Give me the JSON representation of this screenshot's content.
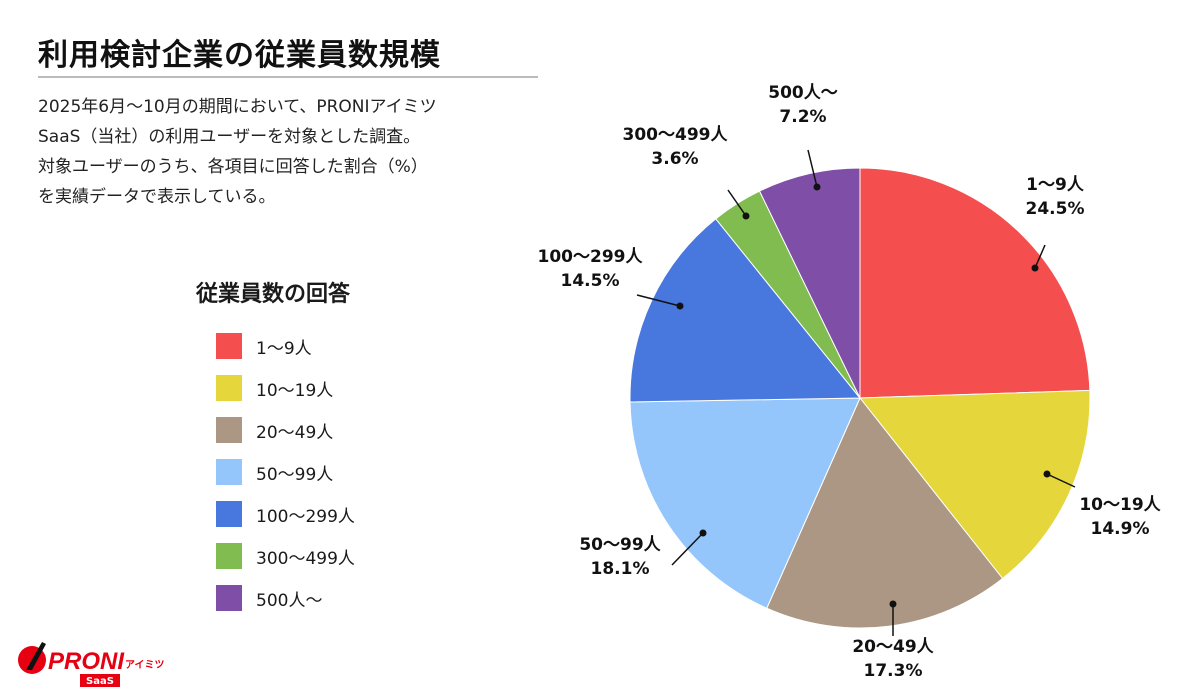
{
  "title": "利用検討企業の従業員数規模",
  "description": [
    "2025年6月〜10月の期間において、PRONIアイミツ",
    "SaaS（当社）の利用ユーザーを対象とした調査。",
    "対象ユーザーのうち、各項目に回答した割合（%）",
    "を実績データで表示している。"
  ],
  "logo": {
    "text": "PRONI",
    "sub": "アイミツ",
    "badge": "SaaS"
  },
  "chart_data": {
    "type": "pie",
    "legend_title": "従業員数の回答",
    "legend_placement": "left",
    "start": "top, clockwise",
    "categories": [
      "1〜9人",
      "10〜19人",
      "20〜49人",
      "50〜99人",
      "100〜299人",
      "300〜499人",
      "500人〜"
    ],
    "values": [
      24.5,
      14.9,
      17.3,
      18.1,
      14.5,
      3.6,
      7.2
    ],
    "labels": [
      "24.5%",
      "14.9%",
      "17.3%",
      "18.1%",
      "14.5%",
      "3.6%",
      "7.2%"
    ],
    "colors": [
      "#F44E4E",
      "#E5D63C",
      "#AB9783",
      "#94C6FC",
      "#4877DE",
      "#80BC50",
      "#7F4FA8"
    ]
  }
}
